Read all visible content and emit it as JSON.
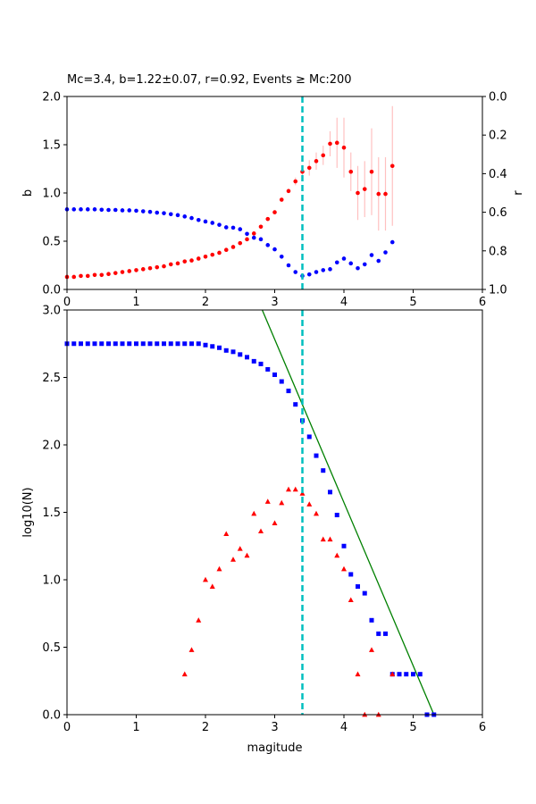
{
  "title": "Mc=3.4, b=1.22±0.07, r=0.92, Events ≥ Mc:200",
  "colors": {
    "b_series": "#ff0000",
    "r_series": "#0000ff",
    "errbar": "#ffc0c0",
    "mc_line": "#00bfbf",
    "cumulative": "#0000ff",
    "noncumulative": "#ff0000",
    "fit": "#008000"
  },
  "chart_data": [
    {
      "type": "scatter",
      "name": "b-value and r versus magnitude",
      "xlabel": "",
      "ylabel": "b",
      "y2label": "r",
      "xlim": [
        0,
        6
      ],
      "ylim": [
        0,
        2
      ],
      "y2lim": [
        1,
        0
      ],
      "x_ticks": [
        "0",
        "1",
        "2",
        "3",
        "4",
        "5",
        "6"
      ],
      "y_ticks": [
        "0.0",
        "0.5",
        "1.0",
        "1.5",
        "2.0"
      ],
      "y2_ticks": [
        "0.0",
        "0.2",
        "0.4",
        "0.6",
        "0.8",
        "1.0"
      ],
      "mc_line_x": 3.4,
      "b_series": {
        "x": [
          0.0,
          0.1,
          0.2,
          0.3,
          0.4,
          0.5,
          0.6,
          0.7,
          0.8,
          0.9,
          1.0,
          1.1,
          1.2,
          1.3,
          1.4,
          1.5,
          1.6,
          1.7,
          1.8,
          1.9,
          2.0,
          2.1,
          2.2,
          2.3,
          2.4,
          2.5,
          2.6,
          2.7,
          2.8,
          2.9,
          3.0,
          3.1,
          3.2,
          3.3,
          3.4,
          3.5,
          3.6,
          3.7,
          3.8,
          3.9,
          4.0,
          4.1,
          4.2,
          4.3,
          4.4,
          4.5,
          4.6,
          4.7
        ],
        "y": [
          0.13,
          0.13,
          0.14,
          0.14,
          0.15,
          0.15,
          0.16,
          0.17,
          0.18,
          0.19,
          0.2,
          0.21,
          0.22,
          0.23,
          0.24,
          0.26,
          0.27,
          0.29,
          0.3,
          0.32,
          0.34,
          0.36,
          0.38,
          0.41,
          0.44,
          0.48,
          0.52,
          0.58,
          0.65,
          0.73,
          0.8,
          0.93,
          1.02,
          1.12,
          1.22,
          1.26,
          1.33,
          1.39,
          1.51,
          1.52,
          1.47,
          1.22,
          1.0,
          1.04,
          1.22,
          0.99,
          0.99,
          1.28
        ],
        "err": [
          0,
          0,
          0,
          0,
          0,
          0,
          0,
          0,
          0,
          0,
          0,
          0,
          0,
          0,
          0,
          0,
          0,
          0,
          0,
          0,
          0,
          0,
          0,
          0,
          0,
          0,
          0,
          0,
          0,
          0,
          0,
          0,
          0,
          0.04,
          0.07,
          0.08,
          0.09,
          0.1,
          0.13,
          0.26,
          0.31,
          0.2,
          0.28,
          0.29,
          0.45,
          0.38,
          0.38,
          0.62
        ]
      },
      "r_series": {
        "x": [
          0.0,
          0.1,
          0.2,
          0.3,
          0.4,
          0.5,
          0.6,
          0.7,
          0.8,
          0.9,
          1.0,
          1.1,
          1.2,
          1.3,
          1.4,
          1.5,
          1.6,
          1.7,
          1.8,
          1.9,
          2.0,
          2.1,
          2.2,
          2.3,
          2.4,
          2.5,
          2.6,
          2.7,
          2.8,
          2.9,
          3.0,
          3.1,
          3.2,
          3.3,
          3.4,
          3.5,
          3.6,
          3.7,
          3.8,
          3.9,
          4.0,
          4.1,
          4.2,
          4.3,
          4.4,
          4.5,
          4.6,
          4.7
        ],
        "y": [
          0.585,
          0.585,
          0.585,
          0.585,
          0.585,
          0.587,
          0.588,
          0.588,
          0.59,
          0.59,
          0.592,
          0.595,
          0.598,
          0.602,
          0.605,
          0.61,
          0.615,
          0.622,
          0.63,
          0.64,
          0.648,
          0.655,
          0.665,
          0.678,
          0.68,
          0.688,
          0.712,
          0.732,
          0.74,
          0.77,
          0.792,
          0.83,
          0.875,
          0.91,
          0.93,
          0.922,
          0.91,
          0.9,
          0.895,
          0.86,
          0.84,
          0.865,
          0.89,
          0.87,
          0.822,
          0.852,
          0.808,
          0.755
        ]
      }
    },
    {
      "type": "scatter",
      "name": "Frequency-magnitude distribution",
      "xlabel": "magitude",
      "ylabel": "log10(N)",
      "xlim": [
        0,
        6
      ],
      "ylim": [
        0,
        3
      ],
      "x_ticks": [
        "0",
        "1",
        "2",
        "3",
        "4",
        "5",
        "6"
      ],
      "y_ticks": [
        "0.0",
        "0.5",
        "1.0",
        "1.5",
        "2.0",
        "2.5",
        "3.0"
      ],
      "mc_line_x": 3.4,
      "cumulative": {
        "x": [
          0.0,
          0.1,
          0.2,
          0.3,
          0.4,
          0.5,
          0.6,
          0.7,
          0.8,
          0.9,
          1.0,
          1.1,
          1.2,
          1.3,
          1.4,
          1.5,
          1.6,
          1.7,
          1.8,
          1.9,
          2.0,
          2.1,
          2.2,
          2.3,
          2.4,
          2.5,
          2.6,
          2.7,
          2.8,
          2.9,
          3.0,
          3.1,
          3.2,
          3.3,
          3.4,
          3.5,
          3.6,
          3.7,
          3.8,
          3.9,
          4.0,
          4.1,
          4.2,
          4.3,
          4.4,
          4.5,
          4.6,
          4.7,
          4.8,
          4.9,
          5.0,
          5.1,
          5.2,
          5.3
        ],
        "y": [
          2.75,
          2.75,
          2.75,
          2.75,
          2.75,
          2.75,
          2.75,
          2.75,
          2.75,
          2.75,
          2.75,
          2.75,
          2.75,
          2.75,
          2.75,
          2.75,
          2.75,
          2.75,
          2.75,
          2.75,
          2.74,
          2.73,
          2.72,
          2.7,
          2.69,
          2.67,
          2.65,
          2.62,
          2.6,
          2.56,
          2.52,
          2.47,
          2.4,
          2.3,
          2.18,
          2.06,
          1.92,
          1.81,
          1.65,
          1.48,
          1.25,
          1.04,
          0.95,
          0.9,
          0.7,
          0.6,
          0.6,
          0.3,
          0.3,
          0.3,
          0.3,
          0.3,
          0.0,
          0.0
        ]
      },
      "noncumulative": {
        "x": [
          1.7,
          1.8,
          1.9,
          2.0,
          2.1,
          2.2,
          2.3,
          2.4,
          2.5,
          2.6,
          2.7,
          2.8,
          2.9,
          3.0,
          3.1,
          3.2,
          3.3,
          3.4,
          3.5,
          3.6,
          3.7,
          3.8,
          3.9,
          4.0,
          4.1,
          4.2,
          4.3,
          4.4,
          4.5,
          4.7
        ],
        "y": [
          0.3,
          0.48,
          0.7,
          1.0,
          0.95,
          1.08,
          1.34,
          1.15,
          1.23,
          1.18,
          1.49,
          1.36,
          1.58,
          1.42,
          1.57,
          1.67,
          1.67,
          1.64,
          1.56,
          1.49,
          1.3,
          1.3,
          1.18,
          1.08,
          0.85,
          0.3,
          0.0,
          0.48,
          0.0,
          0.3
        ]
      },
      "fit_line": {
        "x": [
          2.82,
          5.3
        ],
        "y": [
          3.0,
          0.0
        ]
      }
    }
  ]
}
